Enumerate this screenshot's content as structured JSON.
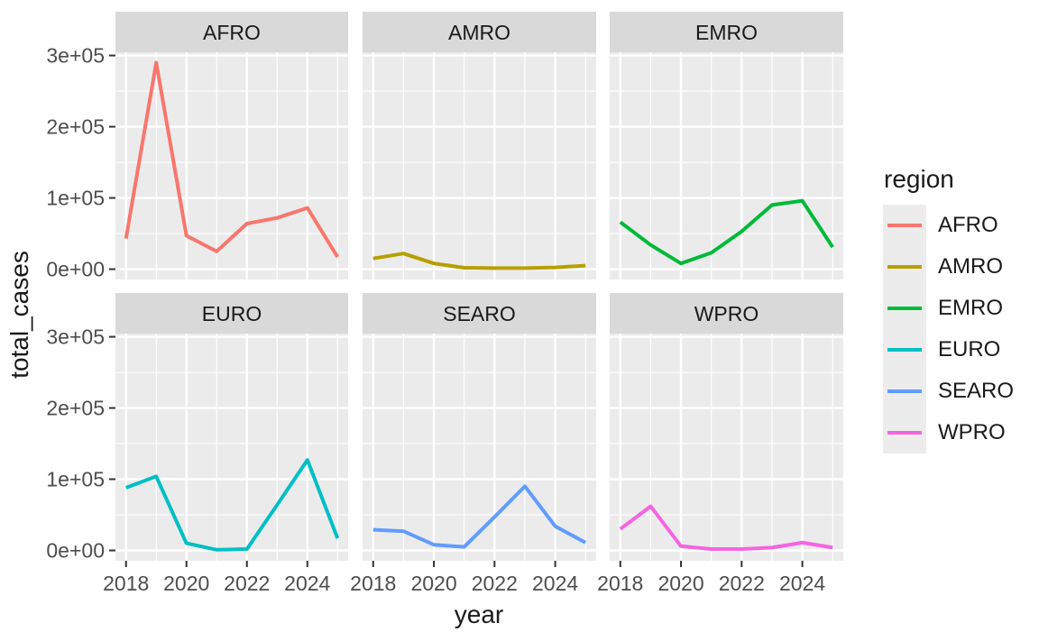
{
  "chart_data": {
    "type": "line",
    "title": "",
    "xlabel": "year",
    "ylabel": "total_cases",
    "legend_title": "region",
    "legend_position": "right",
    "facet_by": "region",
    "grid": true,
    "x": [
      2018,
      2019,
      2020,
      2021,
      2022,
      2023,
      2024,
      2025
    ],
    "x_ticks": [
      2018,
      2020,
      2022,
      2024
    ],
    "x_tick_labels": [
      "2018",
      "2020",
      "2022",
      "2024"
    ],
    "x_minor_ticks": [
      2019,
      2021,
      2023,
      2025
    ],
    "xlim": [
      2018,
      2025
    ],
    "ylim": [
      0,
      300000
    ],
    "y_ticks": [
      {
        "value": 0,
        "label": "0e+00"
      },
      {
        "value": 100000,
        "label": "1e+05"
      },
      {
        "value": 200000,
        "label": "2e+05"
      },
      {
        "value": 300000,
        "label": "3e+05"
      }
    ],
    "y_minor_ticks": [
      50000,
      150000,
      250000
    ],
    "series": [
      {
        "name": "AFRO",
        "color": "#F8766D",
        "values": [
          43000,
          290000,
          47000,
          25000,
          64000,
          72000,
          86000,
          17000
        ]
      },
      {
        "name": "AMRO",
        "color": "#B79F00",
        "values": [
          15000,
          22000,
          8000,
          2000,
          1500,
          1500,
          2500,
          5000
        ]
      },
      {
        "name": "EMRO",
        "color": "#00BA38",
        "values": [
          66000,
          34000,
          8000,
          23000,
          53000,
          90000,
          96000,
          31000
        ]
      },
      {
        "name": "EURO",
        "color": "#00BFC4",
        "values": [
          88000,
          104000,
          10000,
          1000,
          2000,
          64000,
          127000,
          17000
        ]
      },
      {
        "name": "SEARO",
        "color": "#619CFF",
        "values": [
          29000,
          27000,
          8000,
          5000,
          47000,
          90000,
          34000,
          11000
        ]
      },
      {
        "name": "WPRO",
        "color": "#F564E3",
        "values": [
          30000,
          62000,
          6000,
          2000,
          2000,
          4000,
          11000,
          4000
        ]
      }
    ],
    "style": {
      "panel_bg": "#EBEBEB",
      "strip_bg": "#D9D9D9",
      "grid_color": "#FFFFFF",
      "tick_mark_color": "#333333",
      "tick_text_color": "#4D4D4D",
      "text_color": "#1A1A1A",
      "legend_key_bg": "#ECECEC"
    }
  }
}
